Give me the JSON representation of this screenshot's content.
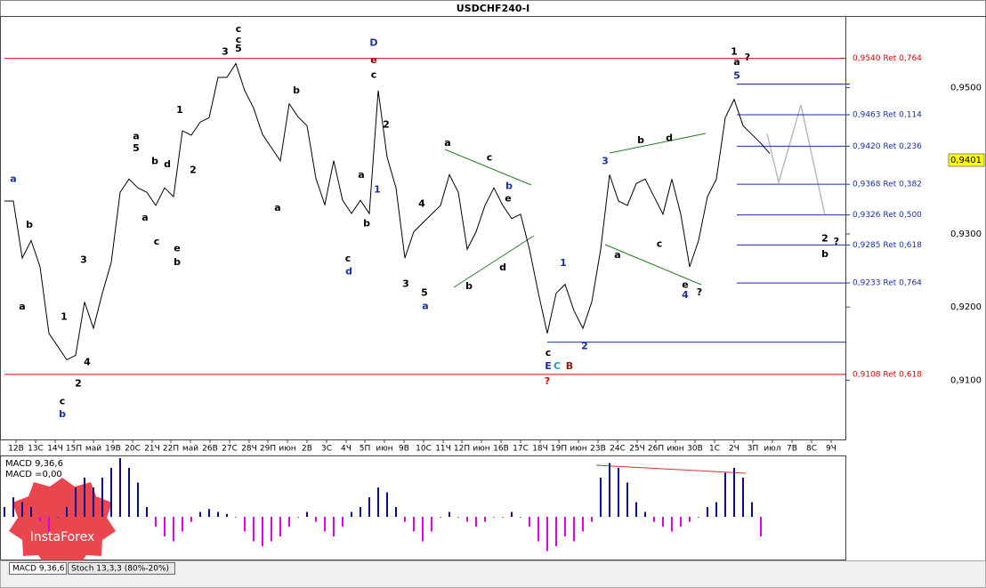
{
  "chart_data": {
    "type": "line",
    "title": "USDCHF240-I",
    "color": "#000000",
    "ylim": [
      0.9019,
      0.9598
    ],
    "yticks": [
      {
        "value": 0.95,
        "label": "0,9500"
      },
      {
        "value": 0.93,
        "label": "0,9300"
      },
      {
        "value": 0.92,
        "label": "0,9200"
      },
      {
        "value": 0.91,
        "label": "0,9100"
      }
    ],
    "xlim": [
      -0.5,
      94.5
    ],
    "xticks": [
      {
        "value": 1.3,
        "label": "12В"
      },
      {
        "value": 3.5,
        "label": "13С"
      },
      {
        "value": 5.7,
        "label": "14Ч"
      },
      {
        "value": 7.8,
        "label": "15П"
      },
      {
        "value": 10.0,
        "label": "май"
      },
      {
        "value": 12.2,
        "label": "19В"
      },
      {
        "value": 14.4,
        "label": "20С"
      },
      {
        "value": 16.6,
        "label": "21Ч"
      },
      {
        "value": 18.7,
        "label": "22П"
      },
      {
        "value": 20.9,
        "label": "май"
      },
      {
        "value": 23.1,
        "label": "26В"
      },
      {
        "value": 25.3,
        "label": "27С"
      },
      {
        "value": 27.5,
        "label": "28Ч"
      },
      {
        "value": 29.6,
        "label": "29П"
      },
      {
        "value": 31.8,
        "label": "июн"
      },
      {
        "value": 34.0,
        "label": "2В"
      },
      {
        "value": 36.2,
        "label": "3С"
      },
      {
        "value": 38.4,
        "label": "4Ч"
      },
      {
        "value": 40.5,
        "label": "5П"
      },
      {
        "value": 42.7,
        "label": "июн"
      },
      {
        "value": 44.9,
        "label": "9В"
      },
      {
        "value": 47.1,
        "label": "10С"
      },
      {
        "value": 49.3,
        "label": "11Ч"
      },
      {
        "value": 51.4,
        "label": "12П"
      },
      {
        "value": 53.6,
        "label": "июн"
      },
      {
        "value": 55.8,
        "label": "16В"
      },
      {
        "value": 58.0,
        "label": "17С"
      },
      {
        "value": 60.2,
        "label": "18Ч"
      },
      {
        "value": 62.3,
        "label": "19П"
      },
      {
        "value": 64.5,
        "label": "июн"
      },
      {
        "value": 66.7,
        "label": "23В"
      },
      {
        "value": 68.9,
        "label": "24С"
      },
      {
        "value": 71.1,
        "label": "25Ч"
      },
      {
        "value": 73.2,
        "label": "26П"
      },
      {
        "value": 75.4,
        "label": "июн"
      },
      {
        "value": 77.6,
        "label": "30В"
      },
      {
        "value": 79.8,
        "label": "1С"
      },
      {
        "value": 82.0,
        "label": "2Ч"
      },
      {
        "value": 84.1,
        "label": "3П"
      },
      {
        "value": 86.3,
        "label": "июл"
      },
      {
        "value": 88.5,
        "label": "7В"
      },
      {
        "value": 90.7,
        "label": "8С"
      },
      {
        "value": 92.9,
        "label": "9Ч"
      }
    ],
    "values": [
      0.9345,
      0.9345,
      0.9267,
      0.9291,
      0.9255,
      0.9164,
      0.9146,
      0.9128,
      0.9134,
      0.9207,
      0.9171,
      0.9219,
      0.9261,
      0.9357,
      0.9375,
      0.9363,
      0.9357,
      0.9339,
      0.9363,
      0.9351,
      0.9441,
      0.9435,
      0.9453,
      0.9459,
      0.9514,
      0.9514,
      0.9533,
      0.9496,
      0.9472,
      0.9436,
      0.9418,
      0.94,
      0.9478,
      0.946,
      0.9448,
      0.9376,
      0.934,
      0.94,
      0.9346,
      0.9328,
      0.9346,
      0.9328,
      0.9496,
      0.9405,
      0.9363,
      0.9267,
      0.9303,
      0.9315,
      0.9327,
      0.9339,
      0.9381,
      0.9357,
      0.9279,
      0.9303,
      0.9339,
      0.9363,
      0.9339,
      0.9321,
      0.9327,
      0.9279,
      0.9219,
      0.9164,
      0.9219,
      0.9231,
      0.9195,
      0.9171,
      0.9207,
      0.9279,
      0.9381,
      0.9345,
      0.9339,
      0.9369,
      0.9375,
      0.9351,
      0.9327,
      0.9375,
      0.9327,
      0.9255,
      0.9291,
      0.9351,
      0.9375,
      0.9459,
      0.9484,
      0.9448,
      0.9436,
      0.9424,
      0.941
    ],
    "current": {
      "value": 0.9401,
      "label": "0,9401"
    },
    "levels": [
      {
        "value": 0.954,
        "label": "0,9540 Ret 0,764",
        "color": "#e00000",
        "from": 0
      },
      {
        "value": 0.9108,
        "label": "0,9108 Ret 0,618",
        "color": "#e00000",
        "from": 0
      },
      {
        "value": 0.9505,
        "color": "#1a2fa0",
        "from": 82.3
      },
      {
        "value": 0.9463,
        "label": "0,9463 Ret 0,114",
        "color": "#1a2fa0",
        "from": 82.3
      },
      {
        "value": 0.942,
        "label": "0,9420 Ret 0,236",
        "color": "#1a2fa0",
        "from": 82.3
      },
      {
        "value": 0.9368,
        "label": "0,9368 Ret 0,382",
        "color": "#1a2fa0",
        "from": 82.3
      },
      {
        "value": 0.9326,
        "label": "0,9326 Ret 0,500",
        "color": "#1a2fa0",
        "from": 82.3
      },
      {
        "value": 0.9285,
        "label": "0,9285 Ret 0,618",
        "color": "#1a2fa0",
        "from": 82.3
      },
      {
        "value": 0.9233,
        "label": "0,9233 Ret 0,764",
        "color": "#1a2fa0",
        "from": 82.3
      },
      {
        "value": 0.9152,
        "color": "#1a2fa0",
        "from": 61
      }
    ],
    "annotations": [
      {
        "text": "D",
        "x": 41.5,
        "y": 0.9561,
        "color": "#1a2fa0"
      },
      {
        "text": "e",
        "x": 41.5,
        "y": 0.9537,
        "color": "#8b0000"
      },
      {
        "text": "c",
        "x": 41.5,
        "y": 0.9517,
        "color": "#000000"
      },
      {
        "text": "c",
        "x": 26.3,
        "y": 0.958,
        "color": "#000000"
      },
      {
        "text": "c",
        "x": 26.3,
        "y": 0.9565,
        "color": "#000000"
      },
      {
        "text": "5",
        "x": 26.3,
        "y": 0.9553,
        "color": "#000000"
      },
      {
        "text": "3",
        "x": 24.8,
        "y": 0.9549,
        "color": "#000000"
      },
      {
        "text": "b",
        "x": 32.8,
        "y": 0.9496,
        "color": "#000000"
      },
      {
        "text": "1",
        "x": 82,
        "y": 0.9549,
        "color": "#000000"
      },
      {
        "text": "a",
        "x": 82.3,
        "y": 0.9535,
        "color": "#000000"
      },
      {
        "text": "?",
        "x": 83.5,
        "y": 0.9541,
        "color": "#000000"
      },
      {
        "text": "5",
        "x": 82.3,
        "y": 0.9516,
        "color": "#1a2fa0"
      },
      {
        "text": "3",
        "x": 67.5,
        "y": 0.9399,
        "color": "#1a2fa0"
      },
      {
        "text": "1",
        "x": 62.8,
        "y": 0.926,
        "color": "#1a2fa0"
      },
      {
        "text": "2",
        "x": 65.2,
        "y": 0.9146,
        "color": "#1a2fa0"
      },
      {
        "text": "4",
        "x": 76.5,
        "y": 0.9216,
        "color": "#1a2fa0"
      },
      {
        "text": "?",
        "x": 78.1,
        "y": 0.922,
        "color": "#000000"
      },
      {
        "text": "c",
        "x": 61.1,
        "y": 0.9137,
        "color": "#000000"
      },
      {
        "text": "E",
        "x": 61.1,
        "y": 0.9119,
        "color": "#1a2fa0"
      },
      {
        "text": "C",
        "x": 62.1,
        "y": 0.9119,
        "color": "#1aa0c0"
      },
      {
        "text": "B",
        "x": 63.5,
        "y": 0.9119,
        "color": "#8b2000"
      },
      {
        "text": "?",
        "x": 61,
        "y": 0.9098,
        "color": "#e00000"
      },
      {
        "text": "c",
        "x": 6.5,
        "y": 0.9071,
        "color": "#000000"
      },
      {
        "text": "b",
        "x": 6.5,
        "y": 0.9053,
        "color": "#1a2fa0"
      },
      {
        "text": "a",
        "x": 1,
        "y": 0.9375,
        "color": "#1a2fa0"
      },
      {
        "text": "b",
        "x": 2.8,
        "y": 0.9312,
        "color": "#000000"
      },
      {
        "text": "a",
        "x": 2,
        "y": 0.92,
        "color": "#000000"
      },
      {
        "text": "1",
        "x": 6.7,
        "y": 0.9186,
        "color": "#000000"
      },
      {
        "text": "2",
        "x": 8.3,
        "y": 0.9095,
        "color": "#000000"
      },
      {
        "text": "4",
        "x": 9.3,
        "y": 0.9124,
        "color": "#000000"
      },
      {
        "text": "3",
        "x": 8.9,
        "y": 0.9264,
        "color": "#000000"
      },
      {
        "text": "a",
        "x": 14.8,
        "y": 0.9433,
        "color": "#000000"
      },
      {
        "text": "5",
        "x": 14.8,
        "y": 0.9417,
        "color": "#000000"
      },
      {
        "text": "b",
        "x": 16.9,
        "y": 0.9399,
        "color": "#000000"
      },
      {
        "text": "d",
        "x": 18.3,
        "y": 0.9395,
        "color": "#000000"
      },
      {
        "text": "c",
        "x": 17.1,
        "y": 0.9289,
        "color": "#000000"
      },
      {
        "text": "a",
        "x": 15.8,
        "y": 0.9322,
        "color": "#000000"
      },
      {
        "text": "e",
        "x": 19.4,
        "y": 0.928,
        "color": "#000000"
      },
      {
        "text": "b",
        "x": 19.4,
        "y": 0.9261,
        "color": "#000000"
      },
      {
        "text": "1",
        "x": 19.7,
        "y": 0.9469,
        "color": "#000000"
      },
      {
        "text": "2",
        "x": 21.2,
        "y": 0.9387,
        "color": "#000000"
      },
      {
        "text": "a",
        "x": 30.7,
        "y": 0.9335,
        "color": "#000000"
      },
      {
        "text": "c",
        "x": 38.6,
        "y": 0.9266,
        "color": "#000000"
      },
      {
        "text": "d",
        "x": 38.7,
        "y": 0.9248,
        "color": "#1a2fa0"
      },
      {
        "text": "b",
        "x": 40.7,
        "y": 0.9314,
        "color": "#000000"
      },
      {
        "text": "a",
        "x": 40.1,
        "y": 0.938,
        "color": "#000000"
      },
      {
        "text": "1",
        "x": 41.9,
        "y": 0.936,
        "color": "#1a2fa0"
      },
      {
        "text": "2",
        "x": 42.9,
        "y": 0.9449,
        "color": "#000000"
      },
      {
        "text": "3",
        "x": 45.1,
        "y": 0.9231,
        "color": "#000000"
      },
      {
        "text": "5",
        "x": 47.2,
        "y": 0.9219,
        "color": "#000000"
      },
      {
        "text": "a",
        "x": 47.3,
        "y": 0.9201,
        "color": "#1a2fa0"
      },
      {
        "text": "4",
        "x": 46.9,
        "y": 0.9341,
        "color": "#000000"
      },
      {
        "text": "a",
        "x": 49.8,
        "y": 0.9424,
        "color": "#000000"
      },
      {
        "text": "c",
        "x": 54.5,
        "y": 0.9404,
        "color": "#000000"
      },
      {
        "text": "b",
        "x": 56.7,
        "y": 0.9365,
        "color": "#1a2fa0"
      },
      {
        "text": "e",
        "x": 56.6,
        "y": 0.9348,
        "color": "#000000"
      },
      {
        "text": "d",
        "x": 56,
        "y": 0.9254,
        "color": "#000000"
      },
      {
        "text": "b",
        "x": 52.2,
        "y": 0.9228,
        "color": "#000000"
      },
      {
        "text": "b",
        "x": 71.5,
        "y": 0.9428,
        "color": "#000000"
      },
      {
        "text": "d",
        "x": 74.7,
        "y": 0.9431,
        "color": "#000000"
      },
      {
        "text": "a",
        "x": 68.9,
        "y": 0.9271,
        "color": "#000000"
      },
      {
        "text": "c",
        "x": 73.6,
        "y": 0.9286,
        "color": "#000000"
      },
      {
        "text": "e",
        "x": 76.5,
        "y": 0.923,
        "color": "#000000"
      },
      {
        "text": "2",
        "x": 92.2,
        "y": 0.9293,
        "color": "#000000"
      },
      {
        "text": "?",
        "x": 93.5,
        "y": 0.9289,
        "color": "#000000"
      },
      {
        "text": "b",
        "x": 92.2,
        "y": 0.9272,
        "color": "#000000"
      }
    ],
    "macd": {
      "label": "MACD 9,36,6",
      "label2": "MACD =0,00",
      "ylim": [
        -40,
        60
      ],
      "pos_color": "#0a0a8a",
      "neg_color": "#e000e0",
      "values": [
        10,
        20,
        15,
        10,
        -5,
        -15,
        0,
        10,
        30,
        40,
        30,
        40,
        50,
        60,
        50,
        35,
        10,
        -10,
        -20,
        -25,
        -15,
        -5,
        5,
        8,
        5,
        3,
        0,
        -15,
        -25,
        -30,
        -25,
        -20,
        -10,
        0,
        5,
        -5,
        -15,
        -20,
        -10,
        5,
        10,
        20,
        30,
        25,
        10,
        -5,
        -15,
        -25,
        -15,
        0,
        5,
        0,
        -5,
        -10,
        -5,
        0,
        0,
        5,
        0,
        -10,
        -25,
        -35,
        -30,
        -20,
        -25,
        -15,
        -5,
        40,
        55,
        50,
        35,
        15,
        5,
        -5,
        -10,
        -15,
        -10,
        -5,
        0,
        10,
        15,
        45,
        50,
        40,
        15,
        -20
      ]
    },
    "tabs": [
      "MACD 9,36,6",
      "Stoch 13,3,3 (80%-20%)"
    ],
    "logo": "InstaForex"
  }
}
